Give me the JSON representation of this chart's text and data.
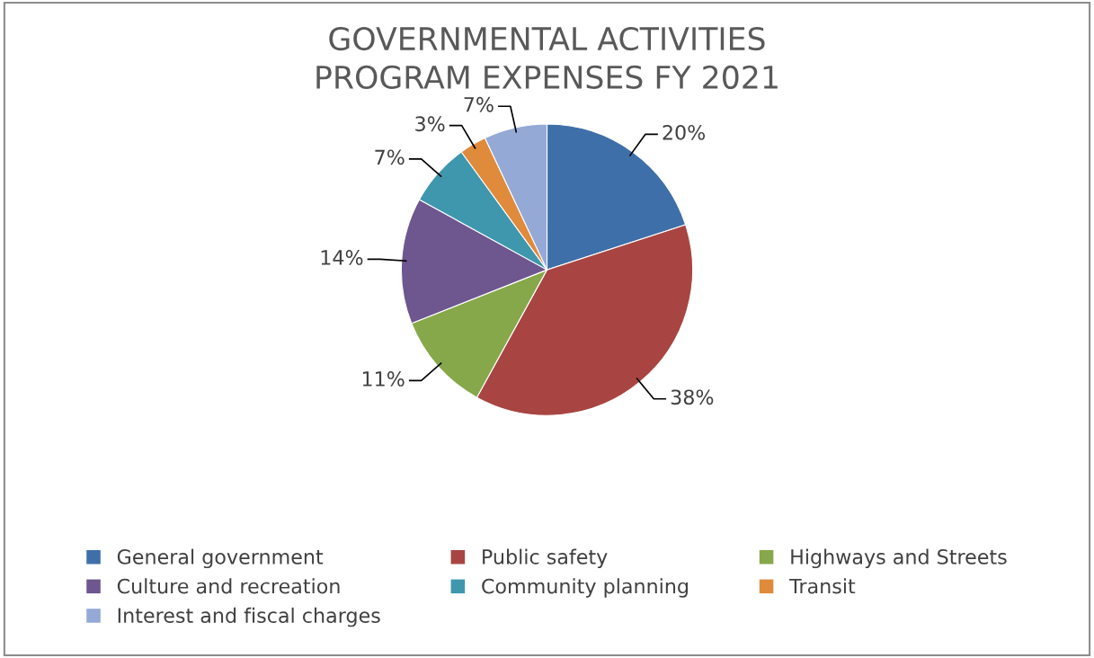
{
  "chart_data": {
    "type": "pie",
    "title": "GOVERNMENTAL ACTIVITIES\nPROGRAM EXPENSES FY 2021",
    "categories": [
      "General government",
      "Public safety",
      "Highways and Streets",
      "Culture and recreation",
      "Community planning",
      "Transit",
      "Interest and fiscal charges"
    ],
    "values": [
      20,
      38,
      11,
      14,
      7,
      3,
      7
    ],
    "value_labels": [
      "20%",
      "38%",
      "11%",
      "14%",
      "7%",
      "3%",
      "7%"
    ],
    "colors": [
      "#3f6fa8",
      "#a84542",
      "#86a84a",
      "#6e568f",
      "#3f97ad",
      "#e08a3c",
      "#94a9d6"
    ],
    "legend": "bottom"
  }
}
